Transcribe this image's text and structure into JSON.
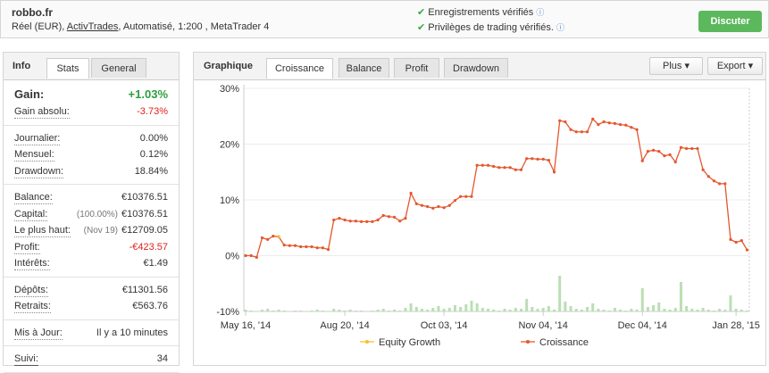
{
  "header": {
    "title": "robbo.fr",
    "account_prefix": "Réel (EUR), ",
    "account_link": "ActivTrades",
    "account_suffix": ", Automatisé, 1:200 , MetaTrader 4",
    "checks": [
      "Enregistrements vérifiés",
      "Privilèges de trading vérifiés."
    ],
    "button": "Discuter"
  },
  "stats": {
    "heading": "Info",
    "tabs": [
      "Stats",
      "General"
    ],
    "sections": [
      [
        {
          "label": "Gain:",
          "value": "+1.03%",
          "color": "#2e9e3e"
        },
        {
          "label": "Gain absolu:",
          "value": "-3.73%",
          "color": "#e0201b"
        }
      ],
      [
        {
          "label": "Journalier:",
          "value": "0.00%"
        },
        {
          "label": "Mensuel:",
          "value": "0.12%"
        },
        {
          "label": "Drawdown:",
          "value": "18.84%"
        }
      ],
      [
        {
          "label": "Balance:",
          "value": "€10376.51"
        },
        {
          "label": "Capital:",
          "note": "(100.00%)",
          "value": "€10376.51"
        },
        {
          "label": "Le plus haut:",
          "note": "(Nov 19)",
          "value": "€12709.05"
        },
        {
          "label": "Profit:",
          "value": "-€423.57",
          "color": "#e0201b"
        },
        {
          "label": "Intérêts:",
          "value": "€1.49"
        }
      ],
      [
        {
          "label": "Dépôts:",
          "value": "€11301.56"
        },
        {
          "label": "Retraits:",
          "value": "€563.76"
        }
      ],
      [
        {
          "label": "Mis à Jour:",
          "value": "Il y a 10 minutes"
        }
      ],
      [
        {
          "label": "Suivi:",
          "value": "34"
        }
      ]
    ]
  },
  "chart_panel": {
    "heading": "Graphique",
    "tabs": [
      "Croissance",
      "Balance",
      "Profit",
      "Drawdown"
    ],
    "buttons": [
      "Plus",
      "Export"
    ]
  },
  "chart_data": {
    "type": "line",
    "grid": true,
    "categories": [
      "May 16, '14",
      null,
      null,
      null,
      null,
      null,
      null,
      null,
      null,
      null,
      null,
      null,
      null,
      null,
      null,
      null,
      null,
      null,
      "Aug 20, '14",
      null,
      null,
      null,
      null,
      null,
      null,
      null,
      null,
      null,
      null,
      null,
      null,
      null,
      null,
      null,
      null,
      null,
      "Oct 03, '14",
      null,
      null,
      null,
      null,
      null,
      null,
      null,
      null,
      null,
      null,
      null,
      null,
      null,
      null,
      null,
      null,
      null,
      "Nov 04, '14",
      null,
      null,
      null,
      null,
      null,
      null,
      null,
      null,
      null,
      null,
      null,
      null,
      null,
      null,
      null,
      null,
      null,
      "Dec 04, '14",
      null,
      null,
      null,
      null,
      null,
      null,
      null,
      null,
      null,
      null,
      null,
      null,
      null,
      null,
      null,
      null,
      "Jan 28, '15",
      null,
      null
    ],
    "ylim": [
      -10,
      30
    ],
    "yticks": [
      {
        "value": 30,
        "label": "30%"
      },
      {
        "value": 20,
        "label": "20%"
      },
      {
        "value": 10,
        "label": "10%"
      },
      {
        "value": 0,
        "label": "0%"
      },
      {
        "value": -10,
        "label": "-10%"
      }
    ],
    "y2lim": [
      0,
      50
    ],
    "series": [
      {
        "name": "Equity Growth",
        "color": "#f2c12e",
        "values": [
          null,
          null,
          null,
          null,
          null,
          null,
          3.4,
          null,
          null,
          null,
          null,
          null,
          null,
          null,
          null,
          null,
          null,
          null,
          null,
          null,
          null,
          null,
          null,
          null,
          null,
          null,
          null,
          null,
          null,
          null,
          null,
          null,
          null,
          null,
          null,
          null,
          null,
          null,
          null,
          null,
          null,
          null,
          null,
          null,
          null,
          null,
          null,
          null,
          null,
          null,
          null,
          null,
          null,
          null,
          null,
          null,
          null,
          null,
          null,
          null,
          null,
          null,
          null,
          null,
          null,
          null,
          null,
          null,
          null,
          null,
          null,
          null,
          null,
          null,
          null,
          null,
          null,
          null,
          null,
          null,
          null,
          null,
          null,
          null,
          null,
          null,
          null,
          null,
          null,
          null,
          null,
          null
        ]
      },
      {
        "name": "Croissance",
        "color": "#e4572e",
        "values": [
          0,
          0,
          -0.3,
          3.2,
          2.9,
          3.5,
          3.4,
          1.9,
          1.8,
          1.8,
          1.6,
          1.6,
          1.6,
          1.4,
          1.4,
          1.1,
          6.4,
          6.7,
          6.4,
          6.2,
          6.2,
          6.1,
          6.1,
          6.1,
          6.4,
          7.2,
          7.0,
          6.9,
          6.2,
          6.7,
          11.2,
          9.3,
          9.0,
          8.8,
          8.5,
          8.8,
          8.6,
          9.0,
          9.9,
          10.6,
          10.6,
          10.6,
          16.2,
          16.2,
          16.2,
          16.0,
          15.8,
          15.8,
          15.8,
          15.4,
          15.4,
          17.4,
          17.4,
          17.3,
          17.3,
          17.1,
          15.0,
          24.2,
          24.0,
          22.6,
          22.2,
          22.2,
          22.2,
          24.5,
          23.5,
          24.0,
          23.8,
          23.7,
          23.5,
          23.4,
          23.0,
          22.6,
          17.0,
          18.7,
          18.9,
          18.7,
          17.9,
          18.1,
          16.8,
          19.4,
          19.2,
          19.2,
          19.2,
          15.4,
          14.2,
          13.4,
          12.9,
          12.9,
          2.9,
          2.4,
          2.7,
          1.03
        ]
      },
      {
        "type": "bar",
        "axis": "y2",
        "color": "#b9dfb3",
        "values": [
          2,
          1,
          0,
          2,
          3,
          1,
          2,
          1,
          0,
          1,
          1,
          0,
          1,
          2,
          1,
          0,
          3,
          2,
          1,
          2,
          1,
          1,
          0,
          1,
          2,
          3,
          1,
          2,
          1,
          4,
          9,
          5,
          3,
          2,
          4,
          6,
          3,
          4,
          7,
          5,
          8,
          12,
          9,
          4,
          3,
          2,
          1,
          3,
          2,
          4,
          3,
          14,
          5,
          3,
          4,
          6,
          2,
          40,
          11,
          6,
          3,
          2,
          5,
          9,
          3,
          2,
          1,
          4,
          2,
          1,
          3,
          2,
          26,
          5,
          7,
          10,
          3,
          2,
          4,
          33,
          6,
          3,
          2,
          4,
          2,
          1,
          3,
          2,
          18,
          3,
          2,
          1
        ]
      }
    ]
  }
}
